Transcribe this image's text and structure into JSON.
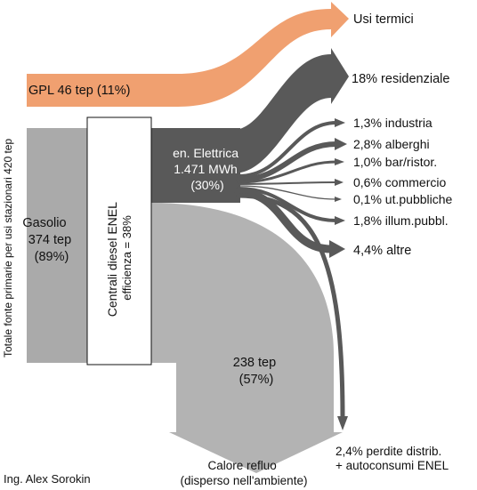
{
  "vertical_label": "Totale fonte primarie per usi stazionari 420 tep",
  "gpl_label": "GPL 46 tep (11%)",
  "usi_termici": "Usi termici",
  "gasolio": {
    "line1": "Gasolio",
    "line2": "374 tep",
    "line3": "(89%)"
  },
  "centrali": {
    "line1": "Centrali diesel ENEL",
    "line2": "efficienza = 38%"
  },
  "elettrica": {
    "line1": "en. Elettrica",
    "line2": "1.471 MWh",
    "line3": "(30%)"
  },
  "outputs": [
    {
      "label": "18% residenziale"
    },
    {
      "label": "1,3% industria"
    },
    {
      "label": "2,8% alberghi"
    },
    {
      "label": "1,0% bar/ristor."
    },
    {
      "label": "0,6% commercio"
    },
    {
      "label": "0,1% ut.pubbliche"
    },
    {
      "label": "1,8% illum.pubbl."
    },
    {
      "label": "4,4% altre"
    }
  ],
  "perdite": {
    "line1": "2,4% perdite distrib.",
    "line2": "+ autoconsumi ENEL"
  },
  "calore_tep": {
    "line1": "238 tep",
    "line2": "(57%)"
  },
  "calore_refluo": {
    "line1": "Calore refluo",
    "line2": "(disperso nell'ambiente)"
  },
  "author": "Ing. Alex Sorokin",
  "colors": {
    "gpl": "#f0a070",
    "gasolio": "#aaaaaa",
    "elettrica": "#595959",
    "calore": "#b3b3b3"
  }
}
